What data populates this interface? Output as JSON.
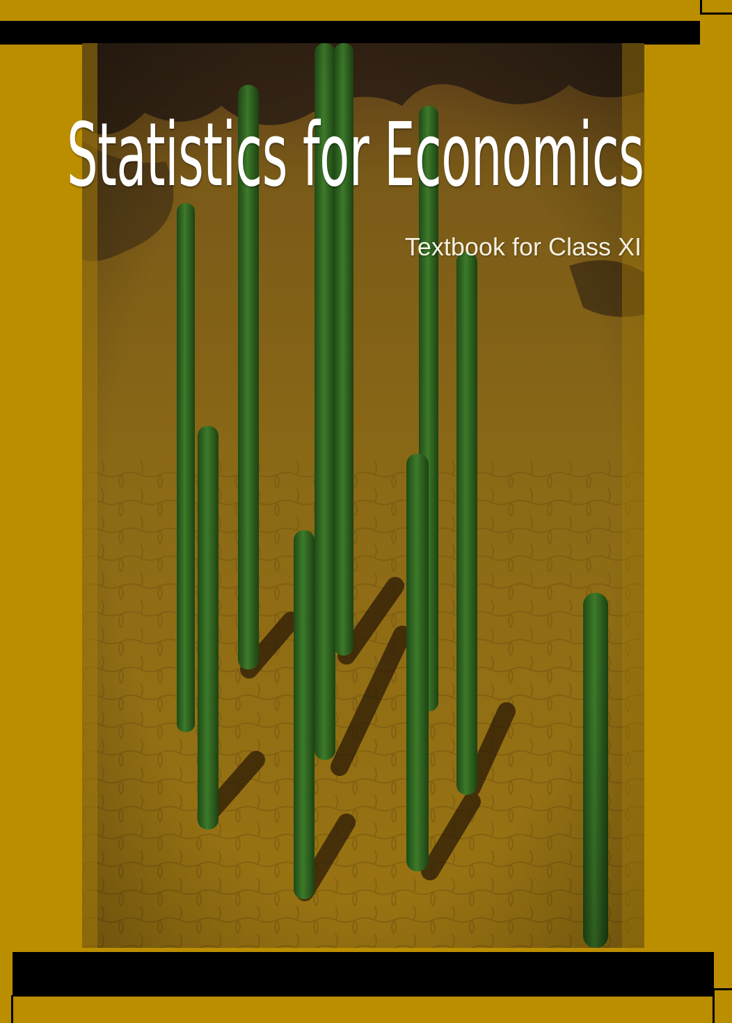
{
  "cover": {
    "title": "Statistics for Economics",
    "subtitle": "Textbook for Class XI"
  },
  "colors": {
    "background": "#bb8e00",
    "bars": "#000000",
    "poles": "#2f6a22",
    "pavement": "#8a6a14",
    "title_text": "#ffffff"
  },
  "cover_image": {
    "description_icon": "green-poles-on-pavement-photo"
  }
}
